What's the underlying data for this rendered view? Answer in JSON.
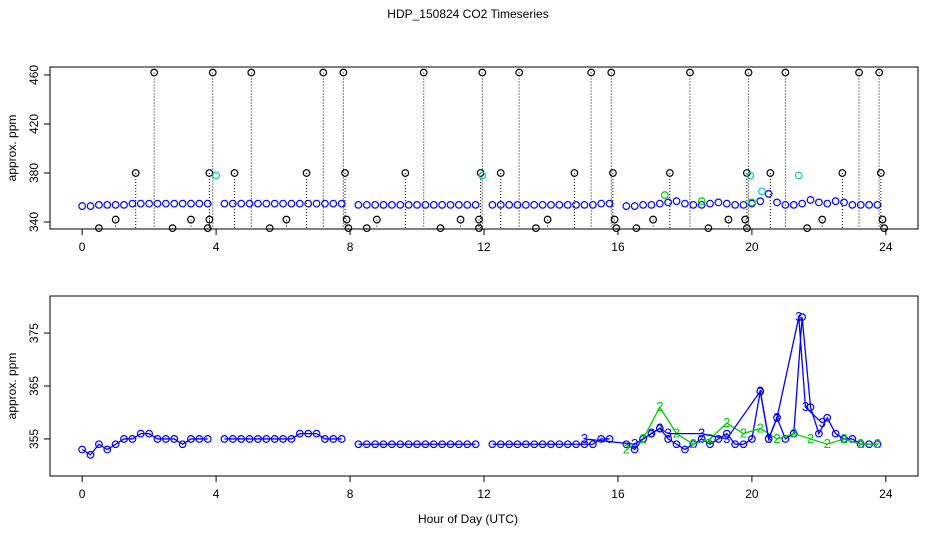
{
  "title": "HDP_150824  CO2 Timeseries",
  "xlabel": "Hour of Day (UTC)",
  "chart_data": [
    {
      "type": "scatter",
      "ylabel": "approx. ppm",
      "xlim": [
        -0.96,
        24.96
      ],
      "ylim": [
        334.3,
        466.5
      ],
      "xticks": [
        0,
        4,
        8,
        12,
        16,
        20,
        24
      ],
      "yticks": [
        340,
        380,
        420,
        460
      ],
      "series": [
        {
          "color": "#0000ff",
          "x": [
            0,
            0.25,
            0.5,
            0.75,
            1,
            1.25,
            1.5,
            1.75,
            2,
            2.25,
            2.5,
            2.75,
            3,
            3.25,
            3.5,
            3.75,
            4,
            4.25,
            4.5,
            4.75,
            5,
            5.25,
            5.5,
            5.75,
            6,
            6.25,
            6.5,
            6.75,
            7,
            7.25,
            7.5,
            7.75,
            8,
            8.25,
            8.5,
            8.75,
            9,
            9.25,
            9.5,
            9.75,
            10,
            10.25,
            10.5,
            10.75,
            11,
            11.25,
            11.5,
            11.75,
            12,
            12.25,
            12.5,
            12.75,
            13,
            13.25,
            13.5,
            13.75,
            14,
            14.25,
            14.5,
            14.75,
            15,
            15.25,
            15.5,
            15.75,
            16,
            16.25,
            16.5,
            16.75,
            17,
            17.25,
            17.5,
            17.75,
            18,
            18.25,
            18.5,
            18.75,
            19,
            19.25,
            19.5,
            19.75,
            20,
            20.25,
            20.5,
            20.75,
            21,
            21.25,
            21.5,
            21.75,
            22,
            22.25,
            22.5,
            22.75,
            23,
            23.25,
            23.5,
            23.75
          ],
          "values": [
            353,
            353,
            354,
            354,
            354,
            354,
            355,
            355,
            355,
            355,
            355,
            355,
            355,
            355,
            355,
            355,
            null,
            355,
            355,
            355,
            355,
            355,
            355,
            355,
            355,
            355,
            355,
            355,
            355,
            355,
            355,
            355,
            null,
            354,
            354,
            354,
            354,
            354,
            354,
            354,
            354,
            354,
            354,
            354,
            354,
            354,
            354,
            354,
            null,
            354,
            354,
            354,
            354,
            354,
            354,
            354,
            354,
            354,
            354,
            354,
            354,
            354,
            355,
            355,
            null,
            353,
            353,
            354,
            354,
            355,
            356,
            357,
            355,
            354,
            354,
            355,
            356,
            355,
            354,
            354,
            355,
            357,
            363,
            356,
            354,
            354,
            355,
            358,
            356,
            355,
            357,
            356,
            354,
            354,
            354,
            354
          ]
        },
        {
          "color": "#000000",
          "drop_lines": true,
          "x": [
            2.15,
            3.9,
            5.05,
            7.2,
            7.8,
            10.2,
            11.95,
            13.05,
            15.2,
            15.8,
            18.15,
            19.9,
            21.0,
            23.2,
            23.8,
            1.6,
            3.8,
            4.55,
            6.7,
            7.85,
            9.65,
            11.9,
            12.5,
            14.7,
            15.85,
            17.55,
            19.85,
            20.55,
            22.7,
            23.85,
            1.0,
            3.25,
            3.8,
            6.1,
            7.9,
            8.8,
            11.3,
            11.85,
            13.9,
            15.9,
            17.05,
            19.3,
            19.8,
            22.1,
            23.9,
            0.5,
            2.7,
            3.75,
            5.6,
            7.95,
            8.5,
            10.7,
            11.85,
            13.55,
            15.95,
            16.55,
            18.7,
            19.85,
            21.65,
            23.95
          ],
          "values": [
            462,
            462,
            462,
            462,
            462,
            462,
            462,
            462,
            462,
            462,
            462,
            462,
            462,
            462,
            462,
            380,
            380,
            380,
            380,
            380,
            380,
            380,
            380,
            380,
            380,
            380,
            380,
            380,
            380,
            380,
            342,
            342,
            342,
            342,
            342,
            342,
            342,
            342,
            342,
            342,
            342,
            342,
            342,
            342,
            342,
            335,
            335,
            335,
            335,
            335,
            335,
            335,
            335,
            335,
            335,
            335,
            335,
            335,
            335,
            335
          ]
        },
        {
          "color": "#00cccc",
          "x": [
            4.0,
            11.95,
            19.95,
            21.4,
            20.3
          ],
          "values": [
            378,
            378,
            378,
            378,
            365
          ]
        },
        {
          "color": "#00cc00",
          "x": [
            17.4,
            18.5,
            20.0
          ],
          "values": [
            362,
            357,
            356
          ]
        }
      ]
    },
    {
      "type": "line",
      "ylabel": "approx. ppm",
      "xlim": [
        -0.96,
        24.96
      ],
      "ylim": [
        348,
        382
      ],
      "xticks": [
        0,
        4,
        8,
        12,
        16,
        20,
        24
      ],
      "yticks": [
        355,
        365,
        375
      ],
      "series": [
        {
          "color": "#0000ff",
          "marker": "circle",
          "x": [
            0,
            0.25,
            0.5,
            0.75,
            1,
            1.25,
            1.5,
            1.75,
            2,
            2.25,
            2.5,
            2.75,
            3,
            3.25,
            3.5,
            3.75,
            4,
            4.25,
            4.5,
            4.75,
            5,
            5.25,
            5.5,
            5.75,
            6,
            6.25,
            6.5,
            6.75,
            7,
            7.25,
            7.5,
            7.75,
            8,
            8.25,
            8.5,
            8.75,
            9,
            9.25,
            9.5,
            9.75,
            10,
            10.25,
            10.5,
            10.75,
            11,
            11.25,
            11.5,
            11.75,
            12,
            12.25,
            12.5,
            12.75,
            13,
            13.25,
            13.5,
            13.75,
            14,
            14.25,
            14.5,
            14.75,
            15,
            15.25,
            15.5,
            15.75,
            16,
            16.25,
            16.5,
            16.75,
            17,
            17.25,
            17.5,
            17.75,
            18,
            18.25,
            18.5,
            18.75,
            19,
            19.25,
            19.5,
            19.75,
            20,
            20.25,
            20.5,
            20.75,
            21,
            21.25,
            21.5,
            21.75,
            22,
            22.25,
            22.5,
            22.75,
            23,
            23.25,
            23.5,
            23.75
          ],
          "values": [
            353,
            352,
            354,
            353,
            354,
            355,
            355,
            356,
            356,
            355,
            355,
            355,
            354,
            355,
            355,
            355,
            null,
            355,
            355,
            355,
            355,
            355,
            355,
            355,
            355,
            355,
            356,
            356,
            356,
            355,
            355,
            355,
            null,
            354,
            354,
            354,
            354,
            354,
            354,
            354,
            354,
            354,
            354,
            354,
            354,
            354,
            354,
            354,
            null,
            354,
            354,
            354,
            354,
            354,
            354,
            354,
            354,
            354,
            354,
            354,
            354,
            354,
            355,
            355,
            null,
            354,
            353,
            355,
            356,
            357,
            355,
            354,
            353,
            354,
            355,
            354,
            355,
            356,
            354,
            354,
            355,
            364,
            355,
            359,
            355,
            356,
            378,
            361,
            356,
            359,
            356,
            355,
            355,
            354,
            354,
            354
          ]
        },
        {
          "color": "#00cc00",
          "marker": "2",
          "x": [
            16.25,
            16.75,
            17.25,
            17.75,
            18.25,
            18.75,
            19.25,
            19.75,
            20.25,
            20.75,
            21.25,
            21.75,
            22.25,
            22.75,
            23.25,
            23.75
          ],
          "values": [
            353,
            355,
            361,
            356,
            354,
            355,
            358,
            356,
            357,
            355,
            356,
            355,
            354,
            355,
            354,
            354
          ]
        },
        {
          "color": "#0000ff",
          "marker": "3",
          "x": [
            15.0,
            16.5,
            17.0,
            17.25,
            17.5,
            18.5,
            19.25,
            20.25,
            20.5,
            20.75,
            21.4,
            21.6,
            22.1
          ],
          "values": [
            355,
            354,
            356,
            357,
            356,
            356,
            355,
            364,
            355,
            359,
            378,
            361,
            358
          ]
        }
      ]
    }
  ]
}
